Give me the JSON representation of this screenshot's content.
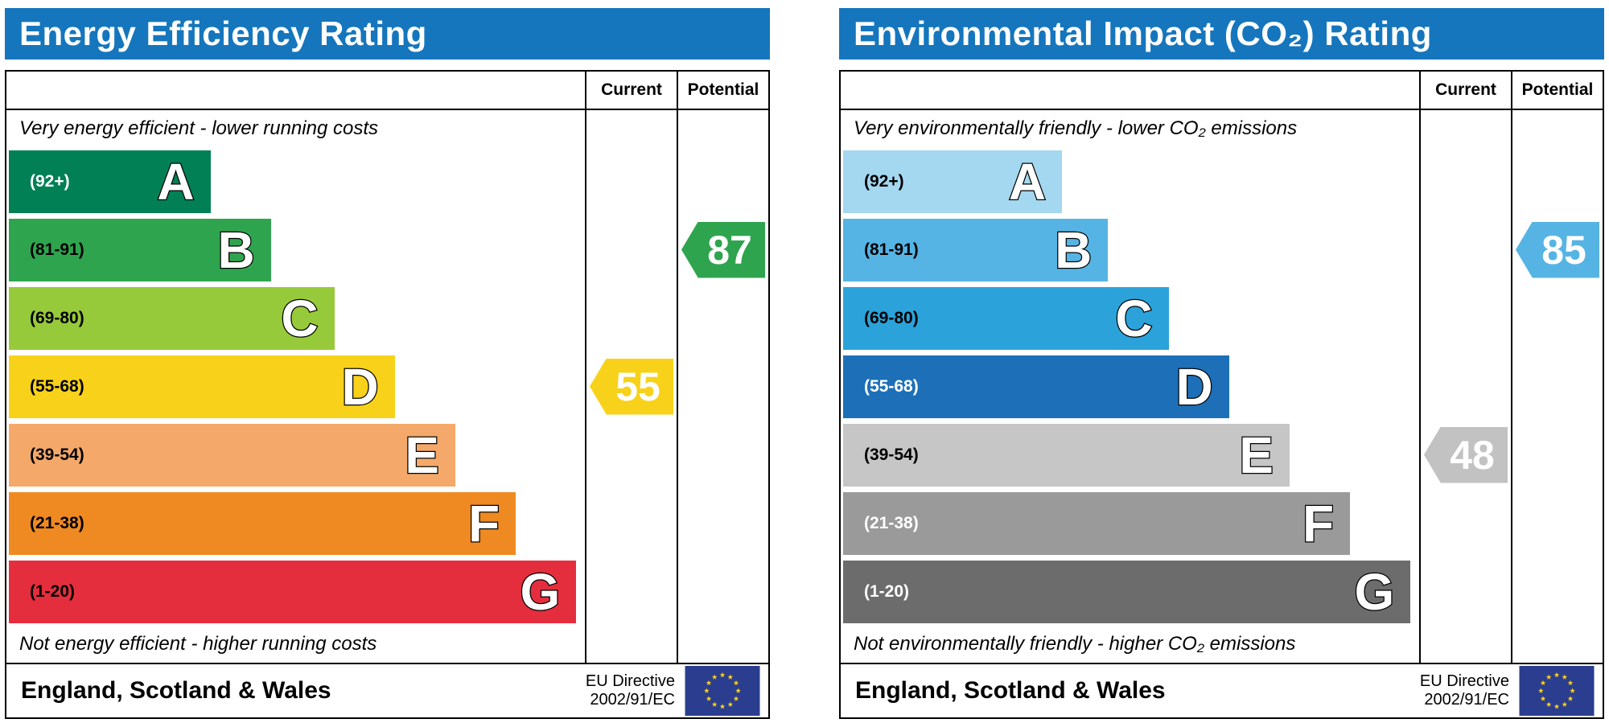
{
  "chart_data": [
    {
      "type": "bar",
      "id": "energy-efficiency-rating",
      "title": "Energy Efficiency Rating",
      "header_color": "#1576bd",
      "columns": {
        "current_label": "Current",
        "potential_label": "Potential"
      },
      "top_note": "Very energy efficient - lower running costs",
      "bottom_note": "Not energy efficient - higher running costs",
      "bands": [
        {
          "letter": "A",
          "range": "(92+)",
          "color": "#008054",
          "width": "35%",
          "range_text_color": "#ffffff"
        },
        {
          "letter": "B",
          "range": "(81-91)",
          "color": "#2fa44e",
          "width": "45.5%",
          "range_text_color": "#000000"
        },
        {
          "letter": "C",
          "range": "(69-80)",
          "color": "#97ca3a",
          "width": "56.5%",
          "range_text_color": "#000000"
        },
        {
          "letter": "D",
          "range": "(55-68)",
          "color": "#f8d21a",
          "width": "67%",
          "range_text_color": "#000000"
        },
        {
          "letter": "E",
          "range": "(39-54)",
          "color": "#f4a96a",
          "width": "77.5%",
          "range_text_color": "#000000"
        },
        {
          "letter": "F",
          "range": "(21-38)",
          "color": "#ef8a22",
          "width": "88%",
          "range_text_color": "#000000"
        },
        {
          "letter": "G",
          "range": "(1-20)",
          "color": "#e52e3d",
          "width": "98.5%",
          "range_text_color": "#000000"
        }
      ],
      "current": {
        "value": 55,
        "band": "D",
        "arrow_color": "#f8d21a"
      },
      "potential": {
        "value": 87,
        "band": "B",
        "arrow_color": "#2fa44e"
      },
      "footer": {
        "region": "England, Scotland & Wales",
        "directive_line1": "EU Directive",
        "directive_line2": "2002/91/EC"
      }
    },
    {
      "type": "bar",
      "id": "environmental-impact-co2-rating",
      "title": "Environmental Impact (CO₂) Rating",
      "header_color": "#1576bd",
      "columns": {
        "current_label": "Current",
        "potential_label": "Potential"
      },
      "top_note": "Very environmentally friendly - lower CO₂ emissions",
      "bottom_note": "Not environmentally friendly - higher CO₂ emissions",
      "bands": [
        {
          "letter": "A",
          "range": "(92+)",
          "color": "#a4d7f0",
          "width": "38%",
          "range_text_color": "#000000"
        },
        {
          "letter": "B",
          "range": "(81-91)",
          "color": "#56b4e4",
          "width": "46%",
          "range_text_color": "#000000"
        },
        {
          "letter": "C",
          "range": "(69-80)",
          "color": "#2ba3da",
          "width": "56.5%",
          "range_text_color": "#000000"
        },
        {
          "letter": "D",
          "range": "(55-68)",
          "color": "#1d70b8",
          "width": "67%",
          "range_text_color": "#ffffff"
        },
        {
          "letter": "E",
          "range": "(39-54)",
          "color": "#c6c6c6",
          "width": "77.5%",
          "range_text_color": "#000000"
        },
        {
          "letter": "F",
          "range": "(21-38)",
          "color": "#9a9a9a",
          "width": "88%",
          "range_text_color": "#ffffff"
        },
        {
          "letter": "G",
          "range": "(1-20)",
          "color": "#6c6c6c",
          "width": "98.5%",
          "range_text_color": "#ffffff"
        }
      ],
      "current": {
        "value": 48,
        "band": "E",
        "arrow_color": "#c2c2c2"
      },
      "potential": {
        "value": 85,
        "band": "B",
        "arrow_color": "#56b4e4"
      },
      "footer": {
        "region": "England, Scotland & Wales",
        "directive_line1": "EU Directive",
        "directive_line2": "2002/91/EC"
      }
    }
  ]
}
